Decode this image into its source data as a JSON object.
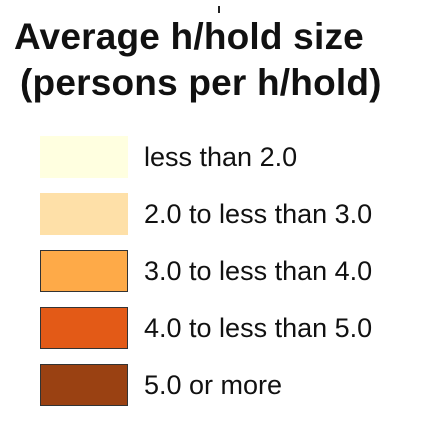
{
  "legend": {
    "title_line1": "Average h/hold size",
    "title_line2": "(persons per h/hold)",
    "items": [
      {
        "label": "less than 2.0",
        "color": "#ffffe0",
        "bordered": false
      },
      {
        "label": "2.0 to less than 3.0",
        "color": "#fee0a8",
        "bordered": false
      },
      {
        "label": "3.0 to less than 4.0",
        "color": "#feaa48",
        "bordered": true
      },
      {
        "label": "4.0 to less than 5.0",
        "color": "#e35a17",
        "bordered": true
      },
      {
        "label": "5.0 or more",
        "color": "#9a4112",
        "bordered": true
      }
    ]
  }
}
